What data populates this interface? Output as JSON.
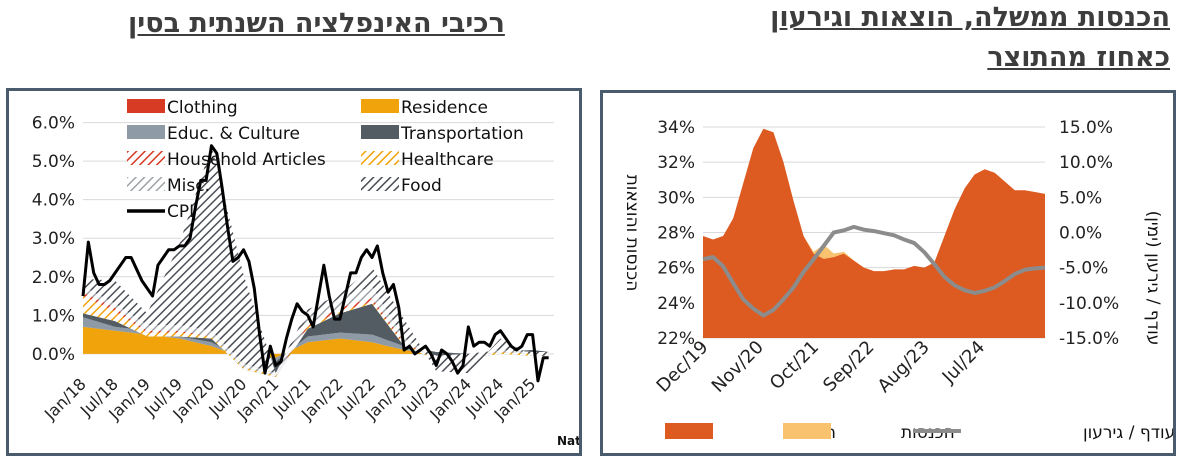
{
  "headings": {
    "right_line1": "הכנסות ממשלה, הוצאות וגירעון",
    "right_line2": "כאחוז מהתוצר",
    "left": "רכיבי האינפלציה השנתית בסין"
  },
  "colors": {
    "clothing": "#d73b24",
    "residence": "#f0a30a",
    "educ_culture": "#8e9aa5",
    "transportation": "#545c63",
    "household": "#d73b24",
    "healthcare": "#f0a30a",
    "misc": "#b8bcc2",
    "food": "#4a4e55",
    "cpi": "#000000",
    "expenses": "#dd5a21",
    "revenues": "#f8c26e",
    "deficit": "#8c8c8c",
    "frame": "#4a5b6e"
  },
  "chart_data": [
    {
      "type": "area",
      "title": "רכיבי האינפלציה השנתית בסין",
      "source": "מקור: National Bureau of Statistics of China",
      "x_labels": [
        "Jan/18",
        "Jul/18",
        "Jan/19",
        "Jul/19",
        "Jan/20",
        "Jul/20",
        "Jan/21",
        "Jul/21",
        "Jan/22",
        "Jul/22",
        "Jan/23",
        "Jul/23",
        "Jan/24",
        "Jul/24",
        "Jan/25"
      ],
      "y_ticks": [
        "0.0%",
        "1.0%",
        "2.0%",
        "3.0%",
        "4.0%",
        "5.0%",
        "6.0%"
      ],
      "ylim": [
        -0.6,
        6.3
      ],
      "legend": [
        "Clothing",
        "Residence",
        "Educ. & Culture",
        "Transportation",
        "Household Articles",
        "Healthcare",
        "Misc.",
        "Food",
        "CPI"
      ],
      "legend_position": "top",
      "grid": true,
      "x_months": [
        0,
        6,
        12,
        18,
        24,
        30,
        36,
        42,
        48,
        54,
        60,
        66,
        72,
        78,
        84,
        87
      ],
      "stack_series": [
        {
          "name": "Residence",
          "pattern": "solid",
          "values": [
            0.7,
            0.6,
            0.5,
            0.4,
            0.2,
            -0.1,
            -0.1,
            0.3,
            0.4,
            0.3,
            0.1,
            0.0,
            -0.05,
            0.0,
            0.05,
            0.05
          ]
        },
        {
          "name": "Educ. & Culture",
          "pattern": "solid",
          "values": [
            0.25,
            0.1,
            0.1,
            0.05,
            0.1,
            -0.05,
            -0.1,
            0.15,
            0.15,
            0.2,
            0.1,
            0.05,
            0.05,
            0.05,
            0.05,
            0.0
          ]
        },
        {
          "name": "Transportation",
          "pattern": "solid",
          "values": [
            0.1,
            0.15,
            -0.15,
            0.0,
            0.1,
            -0.25,
            -0.4,
            0.2,
            0.5,
            0.8,
            0.0,
            -0.2,
            -0.1,
            -0.05,
            -0.15,
            -0.1
          ]
        },
        {
          "name": "Healthcare",
          "pattern": "hatch",
          "values": [
            0.45,
            0.25,
            0.1,
            0.1,
            0.05,
            0.05,
            0.05,
            0.05,
            0.05,
            0.05,
            0.05,
            0.05,
            0.05,
            0.05,
            0.05,
            0.05
          ]
        },
        {
          "name": "Household Articles",
          "pattern": "hatch",
          "values": [
            0.1,
            0.1,
            0.05,
            0.05,
            0.0,
            0.0,
            0.0,
            0.05,
            0.1,
            0.1,
            0.05,
            0.0,
            0.0,
            0.0,
            0.0,
            0.0
          ]
        },
        {
          "name": "Misc.",
          "pattern": "hatch",
          "values": [
            0.15,
            0.1,
            0.15,
            0.15,
            0.15,
            0.1,
            0.05,
            0.2,
            0.25,
            0.3,
            0.1,
            0.05,
            0.05,
            0.05,
            0.05,
            0.05
          ]
        },
        {
          "name": "Food",
          "pattern": "hatch",
          "values": [
            0.2,
            0.6,
            0.3,
            2.1,
            4.8,
            2.3,
            0.0,
            0.2,
            0.1,
            0.5,
            0.5,
            -0.4,
            -0.5,
            0.3,
            -0.1,
            -0.1
          ]
        }
      ],
      "cpi": {
        "x": [
          0,
          1,
          2,
          3,
          4,
          5,
          6,
          7,
          8,
          9,
          10,
          11,
          12,
          13,
          14,
          15,
          16,
          17,
          18,
          19,
          20,
          21,
          22,
          23,
          24,
          25,
          26,
          27,
          28,
          29,
          30,
          31,
          32,
          33,
          34,
          35,
          36,
          37,
          38,
          39,
          40,
          41,
          42,
          43,
          44,
          45,
          46,
          47,
          48,
          49,
          50,
          51,
          52,
          53,
          54,
          55,
          56,
          57,
          58,
          59,
          60,
          61,
          62,
          63,
          64,
          65,
          66,
          67,
          68,
          69,
          70,
          71,
          72,
          73,
          74,
          75,
          76,
          77,
          78,
          79,
          80,
          81,
          82,
          83,
          84,
          85,
          86,
          87
        ],
        "values": [
          1.5,
          2.9,
          2.1,
          1.8,
          1.8,
          1.9,
          2.1,
          2.3,
          2.5,
          2.5,
          2.2,
          1.9,
          1.7,
          1.5,
          2.3,
          2.5,
          2.7,
          2.7,
          2.8,
          2.8,
          3.0,
          3.8,
          4.5,
          4.5,
          5.4,
          5.2,
          4.3,
          3.3,
          2.4,
          2.5,
          2.7,
          2.4,
          1.7,
          0.5,
          -0.5,
          0.2,
          -0.3,
          -0.2,
          0.4,
          0.9,
          1.3,
          1.1,
          1.0,
          0.7,
          1.5,
          2.3,
          1.5,
          0.9,
          0.9,
          1.5,
          2.1,
          2.1,
          2.5,
          2.7,
          2.5,
          2.8,
          2.1,
          1.6,
          1.8,
          1.2,
          0.1,
          0.2,
          0.0,
          0.1,
          0.2,
          0.0,
          -0.3,
          0.1,
          0.0,
          -0.2,
          -0.5,
          -0.3,
          0.7,
          0.2,
          0.3,
          0.3,
          0.2,
          0.5,
          0.6,
          0.4,
          0.2,
          0.1,
          0.2,
          0.5,
          0.5,
          -0.7,
          -0.1,
          -0.1
        ]
      }
    },
    {
      "type": "area",
      "title": "הכנסות ממשלה, הוצאות וגירעון כאחוז מהתוצר",
      "x_labels": [
        "Dec/19",
        "Nov/20",
        "Oct/21",
        "Sep/22",
        "Aug/23",
        "Jul/24"
      ],
      "y_left_label": "הכנסות והוצאות",
      "y_left_ticks": [
        "22%",
        "24%",
        "26%",
        "28%",
        "30%",
        "32%",
        "34%"
      ],
      "y_left_lim": [
        22,
        34
      ],
      "y_right_label": "עודף / גירעון (ימין)",
      "y_right_ticks": [
        "-15.0%",
        "-10.0%",
        "-5.0%",
        "0.0%",
        "5.0%",
        "10.0%",
        "15.0%"
      ],
      "y_right_lim": [
        -15,
        15
      ],
      "legend": [
        "הוצאות",
        "הכנסות",
        "עודף / גירעון"
      ],
      "legend_position": "bottom",
      "x_months": [
        0,
        2,
        4,
        6,
        8,
        10,
        12,
        14,
        16,
        18,
        20,
        22,
        24,
        26,
        28,
        30,
        32,
        34,
        36,
        38,
        40,
        42,
        44,
        46,
        48,
        50,
        52,
        54,
        56,
        58,
        60,
        62,
        64,
        66,
        68
      ],
      "series": [
        {
          "name": "הוצאות",
          "values": [
            27.8,
            27.6,
            27.8,
            28.8,
            30.8,
            32.8,
            33.9,
            33.7,
            32.0,
            29.8,
            27.8,
            26.8,
            26.5,
            26.6,
            26.8,
            26.4,
            26.0,
            25.8,
            25.8,
            25.9,
            25.9,
            26.1,
            26.0,
            26.3,
            27.8,
            29.3,
            30.5,
            31.3,
            31.6,
            31.4,
            30.9,
            30.4,
            30.4,
            30.3,
            30.2
          ]
        },
        {
          "name": "הכנסות",
          "values": [
            24.5,
            24.7,
            23.8,
            23.0,
            22.9,
            22.8,
            22.5,
            23.3,
            24.3,
            25.3,
            26.3,
            26.9,
            27.3,
            26.8,
            26.9,
            26.4,
            25.8,
            25.7,
            25.6,
            25.5,
            25.3,
            24.5,
            23.8,
            23.3,
            22.9,
            22.9,
            23.1,
            23.5,
            23.9,
            24.3,
            24.8,
            25.2,
            25.2,
            25.3,
            25.4
          ]
        },
        {
          "name": "עודף / גירעון",
          "values": [
            -3.8,
            -3.5,
            -4.8,
            -7.2,
            -9.5,
            -10.8,
            -11.8,
            -11.0,
            -9.5,
            -7.8,
            -5.6,
            -3.8,
            -1.9,
            0.0,
            0.3,
            0.8,
            0.4,
            0.2,
            -0.1,
            -0.4,
            -1.0,
            -1.5,
            -2.8,
            -4.5,
            -6.3,
            -7.5,
            -8.2,
            -8.6,
            -8.3,
            -7.8,
            -6.9,
            -5.9,
            -5.3,
            -5.1,
            -5.0
          ]
        }
      ]
    }
  ]
}
